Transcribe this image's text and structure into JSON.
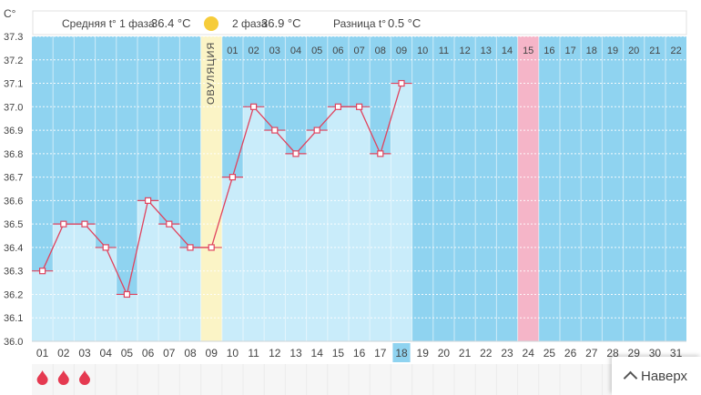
{
  "header": {
    "phase1_label": "Средняя t° 1 фаза",
    "phase1_value": "36.4 °C",
    "phase2_label": "2 фаза",
    "phase2_value": "36.9 °C",
    "diff_label": "Разница t°",
    "diff_value": "0.5 °C"
  },
  "y_unit": "C°",
  "ovulation_label": "ОВУЛЯЦИЯ",
  "to_top_label": "Наверх",
  "colors": {
    "sky": "#8fd3f0",
    "bar": "#c9ecfa",
    "line": "#e0435e",
    "ovulation": "#fbf4c6",
    "highlight_pink": "#f5b5c8",
    "blood": "#e53950",
    "today": "#8fd3f0"
  },
  "chart_data": {
    "type": "line",
    "ylim": [
      36.0,
      37.3
    ],
    "ytick_labels": [
      "37.3",
      "37.2",
      "37.1",
      "37.0",
      "36.9",
      "36.8",
      "36.7",
      "36.6",
      "36.5",
      "36.4",
      "36.3",
      "36.2",
      "36.1",
      "36.0"
    ],
    "dates": [
      "01",
      "02",
      "03",
      "04",
      "05",
      "06",
      "07",
      "08",
      "09",
      "10",
      "11",
      "12",
      "13",
      "14",
      "15",
      "16",
      "17",
      "18",
      "19",
      "20",
      "21",
      "22",
      "23",
      "24",
      "25",
      "26",
      "27",
      "28",
      "29",
      "30",
      "31"
    ],
    "cycle_days_top": [
      "01",
      "02",
      "03",
      "04",
      "05",
      "06",
      "07",
      "08",
      "09",
      "10",
      "11",
      "12",
      "13",
      "14",
      "15",
      "16",
      "17",
      "18",
      "19",
      "20",
      "21",
      "22"
    ],
    "temperatures": [
      36.3,
      36.5,
      36.5,
      36.4,
      36.2,
      36.6,
      36.5,
      36.4,
      36.4,
      36.7,
      37.0,
      36.9,
      36.8,
      36.9,
      37.0,
      37.0,
      36.8,
      37.1
    ],
    "ovulation_date_index": 8,
    "highlight_top_day": "15",
    "today_date": "18",
    "period_days": 3
  }
}
